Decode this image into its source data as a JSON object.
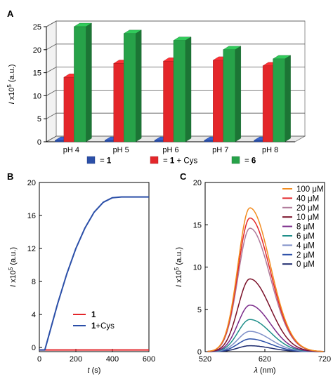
{
  "panels": {
    "a": {
      "letter": "A"
    },
    "b": {
      "letter": "B"
    },
    "c": {
      "letter": "C"
    }
  },
  "chart_data": [
    {
      "id": "A",
      "type": "bar",
      "style": "3d",
      "categories": [
        "pH 4",
        "pH 5",
        "pH 6",
        "pH 7",
        "pH 8"
      ],
      "ylabel": "I x10^5 (a.u.)",
      "ylabel_main": "I",
      "ylabel_mult": "x10",
      "ylabel_exp": "5",
      "ylabel_unit": "(a.u.)",
      "ylim": [
        0,
        25
      ],
      "yticks": [
        0,
        5,
        10,
        15,
        20,
        25
      ],
      "grid": true,
      "legend_position": "bottom",
      "series": [
        {
          "name": "= 1",
          "name_prefix": "= ",
          "name_bold": "1",
          "name_suffix": "",
          "color": "#2b4fa8",
          "values": [
            0.3,
            0.3,
            0.3,
            0.3,
            0.3
          ]
        },
        {
          "name": "= 1 + Cys",
          "name_prefix": "= ",
          "name_bold": "1",
          "name_suffix": " + Cys",
          "color": "#e3262a",
          "values": [
            14,
            17,
            17.5,
            17.7,
            16.5
          ]
        },
        {
          "name": "= 6",
          "name_prefix": "= ",
          "name_bold": "6",
          "name_suffix": "",
          "color": "#27a249",
          "values": [
            25,
            23.5,
            22,
            20,
            18
          ]
        }
      ]
    },
    {
      "id": "B",
      "type": "line",
      "xlabel": "t (s)",
      "xlabel_var": "t",
      "xlabel_unit": " (s)",
      "ylabel": "I x10^5 (a.u.)",
      "ylabel_main": "I",
      "ylabel_mult": "x10",
      "ylabel_exp": "5",
      "ylabel_unit": "(a.u.)",
      "xlim": [
        0,
        600
      ],
      "ylim": [
        -0.5,
        20
      ],
      "xticks": [
        0,
        200,
        400,
        600
      ],
      "yticks": [
        0,
        4,
        8,
        12,
        16,
        20
      ],
      "legend_position": "center-right",
      "series": [
        {
          "name": "1",
          "color": "#e3262a",
          "x": [
            0,
            30,
            100,
            200,
            300,
            400,
            500,
            600
          ],
          "y": [
            -0.3,
            -0.3,
            -0.3,
            -0.3,
            -0.3,
            -0.3,
            -0.3,
            -0.3
          ]
        },
        {
          "name": "1+Cys",
          "color": "#2b4fa8",
          "x": [
            0,
            30,
            50,
            100,
            150,
            200,
            250,
            300,
            350,
            400,
            450,
            500,
            550,
            600
          ],
          "y": [
            -0.3,
            -0.3,
            1.3,
            5.3,
            8.9,
            12.0,
            14.5,
            16.4,
            17.6,
            18.15,
            18.25,
            18.25,
            18.25,
            18.25
          ]
        }
      ]
    },
    {
      "id": "C",
      "type": "line",
      "xlabel": "λ (nm)",
      "xlabel_var": "λ",
      "xlabel_unit": " (nm)",
      "ylabel": "I x10^5 (a.u.)",
      "ylabel_main": "I",
      "ylabel_mult": "x10",
      "ylabel_exp": "5",
      "ylabel_unit": "(a.u.)",
      "xlim": [
        520,
        720
      ],
      "ylim": [
        0,
        20
      ],
      "xticks": [
        520,
        620,
        720
      ],
      "yticks": [
        0,
        5,
        10,
        15,
        20
      ],
      "legend_position": "top-right",
      "series": [
        {
          "name": "100 μM",
          "color": "#f28c1f",
          "peak_x": 595,
          "peak_y": 17.0
        },
        {
          "name": "40 μM",
          "color": "#e3262a",
          "peak_x": 595,
          "peak_y": 15.8
        },
        {
          "name": "20 μM",
          "color": "#b07a9a",
          "peak_x": 595,
          "peak_y": 14.6
        },
        {
          "name": "10 μM",
          "color": "#7a1028",
          "peak_x": 595,
          "peak_y": 8.6
        },
        {
          "name": "8 μM",
          "color": "#7a2a8a",
          "peak_x": 595,
          "peak_y": 5.5
        },
        {
          "name": "6 μM",
          "color": "#1f8f8a",
          "peak_x": 595,
          "peak_y": 3.8
        },
        {
          "name": "4 μM",
          "color": "#7e8fc8",
          "peak_x": 595,
          "peak_y": 2.4
        },
        {
          "name": "2 μM",
          "color": "#2b4fa8",
          "peak_x": 595,
          "peak_y": 1.5
        },
        {
          "name": "0 μM",
          "color": "#1c2a6e",
          "peak_x": 595,
          "peak_y": 0.7
        }
      ]
    }
  ]
}
